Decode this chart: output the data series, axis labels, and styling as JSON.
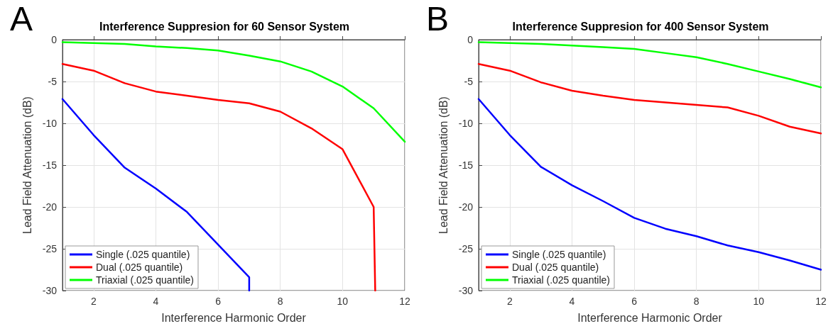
{
  "chart_data": [
    {
      "type": "line",
      "title": "Interference Suppresion for 60 Sensor System",
      "xlabel": "Interference Harmonic Order",
      "ylabel": "Lead Field Attenuation (dB)",
      "annotations": [
        "A"
      ],
      "x": [
        1,
        2,
        3,
        4,
        5,
        6,
        7,
        8,
        9,
        10,
        11,
        12
      ],
      "xlim": [
        1,
        12
      ],
      "xticks": [
        2,
        4,
        6,
        8,
        10,
        12
      ],
      "ylim": [
        -30,
        0
      ],
      "yticks": [
        -30,
        -25,
        -20,
        -15,
        -10,
        -5,
        0
      ],
      "grid": true,
      "legend": "bottom left",
      "marker": "none",
      "line_style": "solid",
      "series": [
        {
          "name": "Single (.025 quantile)",
          "color": "#0000ff",
          "x": [
            1,
            2,
            3,
            4,
            5,
            6,
            7,
            7
          ],
          "values": [
            -7.1,
            -11.4,
            -15.3,
            -17.8,
            -20.6,
            null,
            -28.4,
            -30
          ]
        },
        {
          "name": "Dual (.025 quantile)",
          "color": "#ff0000",
          "x": [
            1,
            2,
            3,
            4,
            5,
            6,
            7,
            8,
            9,
            10,
            11,
            11.05
          ],
          "values": [
            -2.9,
            -3.7,
            -5.2,
            -6.2,
            -6.7,
            -7.2,
            -7.6,
            -8.6,
            -10.6,
            -13.1,
            -20.0,
            -30
          ]
        },
        {
          "name": "Triaxial (.025 quantile)",
          "color": "#00ff00",
          "values": [
            -0.3,
            -0.4,
            -0.5,
            -0.8,
            -1.0,
            -1.3,
            -1.9,
            -2.6,
            -3.8,
            -5.6,
            -8.2,
            -12.2
          ]
        }
      ]
    },
    {
      "type": "line",
      "title": "Interference Suppresion for 400 Sensor System",
      "xlabel": "Interference Harmonic Order",
      "ylabel": "Lead Field Attenuation (dB)",
      "annotations": [
        "B"
      ],
      "x": [
        1,
        2,
        3,
        4,
        5,
        6,
        7,
        8,
        9,
        10,
        11,
        12
      ],
      "xlim": [
        1,
        12
      ],
      "xticks": [
        2,
        4,
        6,
        8,
        10,
        12
      ],
      "ylim": [
        -30,
        0
      ],
      "yticks": [
        -30,
        -25,
        -20,
        -15,
        -10,
        -5,
        0
      ],
      "grid": true,
      "legend": "bottom left",
      "marker": "none",
      "line_style": "solid",
      "series": [
        {
          "name": "Single (.025 quantile)",
          "color": "#0000ff",
          "values": [
            -7.1,
            -11.4,
            -15.2,
            -17.4,
            -19.3,
            -21.3,
            -22.6,
            -23.5,
            -24.6,
            -25.4,
            -26.4,
            -27.5
          ]
        },
        {
          "name": "Dual (.025 quantile)",
          "color": "#ff0000",
          "values": [
            -2.9,
            -3.7,
            -5.1,
            -6.1,
            -6.7,
            -7.2,
            -7.5,
            -7.8,
            -8.1,
            -9.1,
            -10.4,
            -11.2
          ]
        },
        {
          "name": "Triaxial (.025 quantile)",
          "color": "#00ff00",
          "values": [
            -0.3,
            -0.4,
            -0.5,
            -0.7,
            -0.9,
            -1.1,
            -1.6,
            -2.1,
            -2.9,
            -3.8,
            -4.7,
            -5.7
          ]
        }
      ]
    }
  ]
}
